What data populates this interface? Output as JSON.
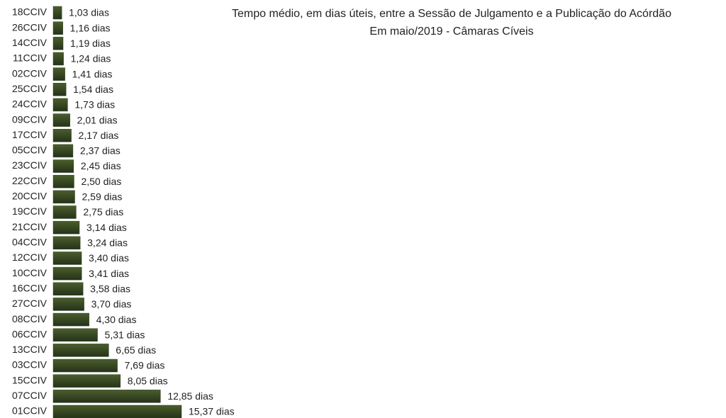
{
  "chart_data": {
    "type": "bar",
    "orientation": "horizontal",
    "title": "Tempo médio, em dias úteis, entre a Sessão de Julgamento e a Publicação do Acórdão",
    "subtitle": "Em maio/2019 - Câmaras Cíveis",
    "color": "#33441f",
    "categories": [
      "18CCIV",
      "26CCIV",
      "14CCIV",
      "11CCIV",
      "02CCIV",
      "25CCIV",
      "24CCIV",
      "09CCIV",
      "17CCIV",
      "05CCIV",
      "23CCIV",
      "22CCIV",
      "20CCIV",
      "19CCIV",
      "21CCIV",
      "04CCIV",
      "12CCIV",
      "10CCIV",
      "16CCIV",
      "27CCIV",
      "08CCIV",
      "06CCIV",
      "13CCIV",
      "03CCIV",
      "15CCIV",
      "07CCIV",
      "01CCIV"
    ],
    "values": [
      1.03,
      1.16,
      1.19,
      1.24,
      1.41,
      1.54,
      1.73,
      2.01,
      2.17,
      2.37,
      2.45,
      2.5,
      2.59,
      2.75,
      3.14,
      3.24,
      3.4,
      3.41,
      3.58,
      3.7,
      4.3,
      5.31,
      6.65,
      7.69,
      8.05,
      12.85,
      15.37
    ],
    "value_labels": [
      "1,03 dias",
      "1,16 dias",
      "1,19 dias",
      "1,24 dias",
      "1,41 dias",
      "1,54 dias",
      "1,73 dias",
      "2,01 dias",
      "2,17 dias",
      "2,37 dias",
      "2,45 dias",
      "2,50 dias",
      "2,59 dias",
      "2,75 dias",
      "3,14 dias",
      "3,24 dias",
      "3,40 dias",
      "3,41 dias",
      "3,58 dias",
      "3,70 dias",
      "4,30 dias",
      "5,31 dias",
      "6,65 dias",
      "7,69 dias",
      "8,05 dias",
      "12,85 dias",
      "15,37 dias"
    ]
  }
}
